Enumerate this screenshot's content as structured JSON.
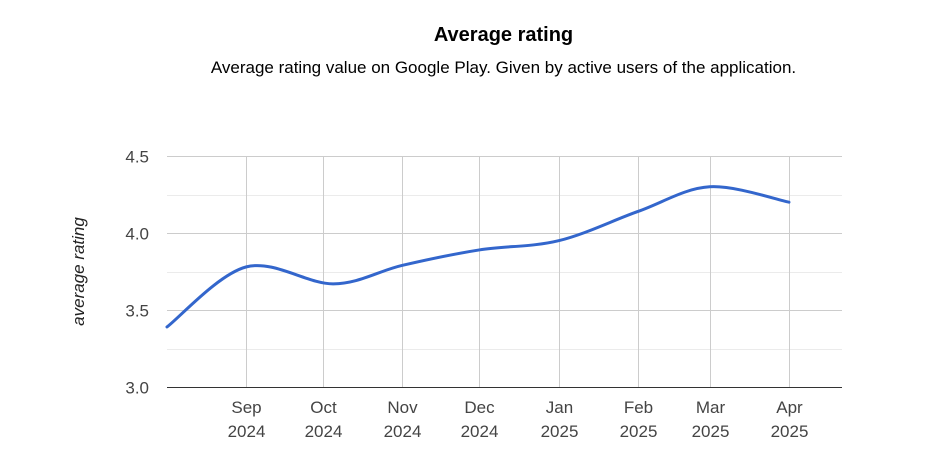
{
  "chart_data": {
    "type": "line",
    "title": "Average rating",
    "subtitle": "Average rating value on Google Play. Given by active users of the application.",
    "xlabel": "",
    "ylabel": "average rating",
    "ylim": [
      3.0,
      4.5
    ],
    "yticks": [
      "3.0",
      "3.5",
      "4.0",
      "4.5"
    ],
    "y_tick_values": [
      3.0,
      3.5,
      4.0,
      4.5
    ],
    "grid": true,
    "legend": "none",
    "x_range": [
      "2024-08-01",
      "2025-04-30"
    ],
    "x_tick_labels": [
      {
        "month": "Sep",
        "year": "2024",
        "date": "2024-09-01"
      },
      {
        "month": "Oct",
        "year": "2024",
        "date": "2024-10-01"
      },
      {
        "month": "Nov",
        "year": "2024",
        "date": "2024-11-01"
      },
      {
        "month": "Dec",
        "year": "2024",
        "date": "2024-12-01"
      },
      {
        "month": "Jan",
        "year": "2025",
        "date": "2025-01-01"
      },
      {
        "month": "Feb",
        "year": "2025",
        "date": "2025-02-01"
      },
      {
        "month": "Mar",
        "year": "2025",
        "date": "2025-03-01"
      },
      {
        "month": "Apr",
        "year": "2025",
        "date": "2025-04-01"
      }
    ],
    "series": [
      {
        "color": "#3366cc",
        "points": [
          {
            "x": "2024-08-01",
            "y": 3.39
          },
          {
            "x": "2024-09-01",
            "y": 3.78
          },
          {
            "x": "2024-10-05",
            "y": 3.67
          },
          {
            "x": "2024-11-01",
            "y": 3.79
          },
          {
            "x": "2024-12-01",
            "y": 3.89
          },
          {
            "x": "2025-01-01",
            "y": 3.95
          },
          {
            "x": "2025-02-01",
            "y": 4.14
          },
          {
            "x": "2025-03-01",
            "y": 4.3
          },
          {
            "x": "2025-04-01",
            "y": 4.2
          }
        ]
      }
    ],
    "colors": {
      "gridline": "#cccccc",
      "minor_gridline": "#ebebeb",
      "axis_text": "#444444",
      "baseline": "#333333"
    }
  }
}
